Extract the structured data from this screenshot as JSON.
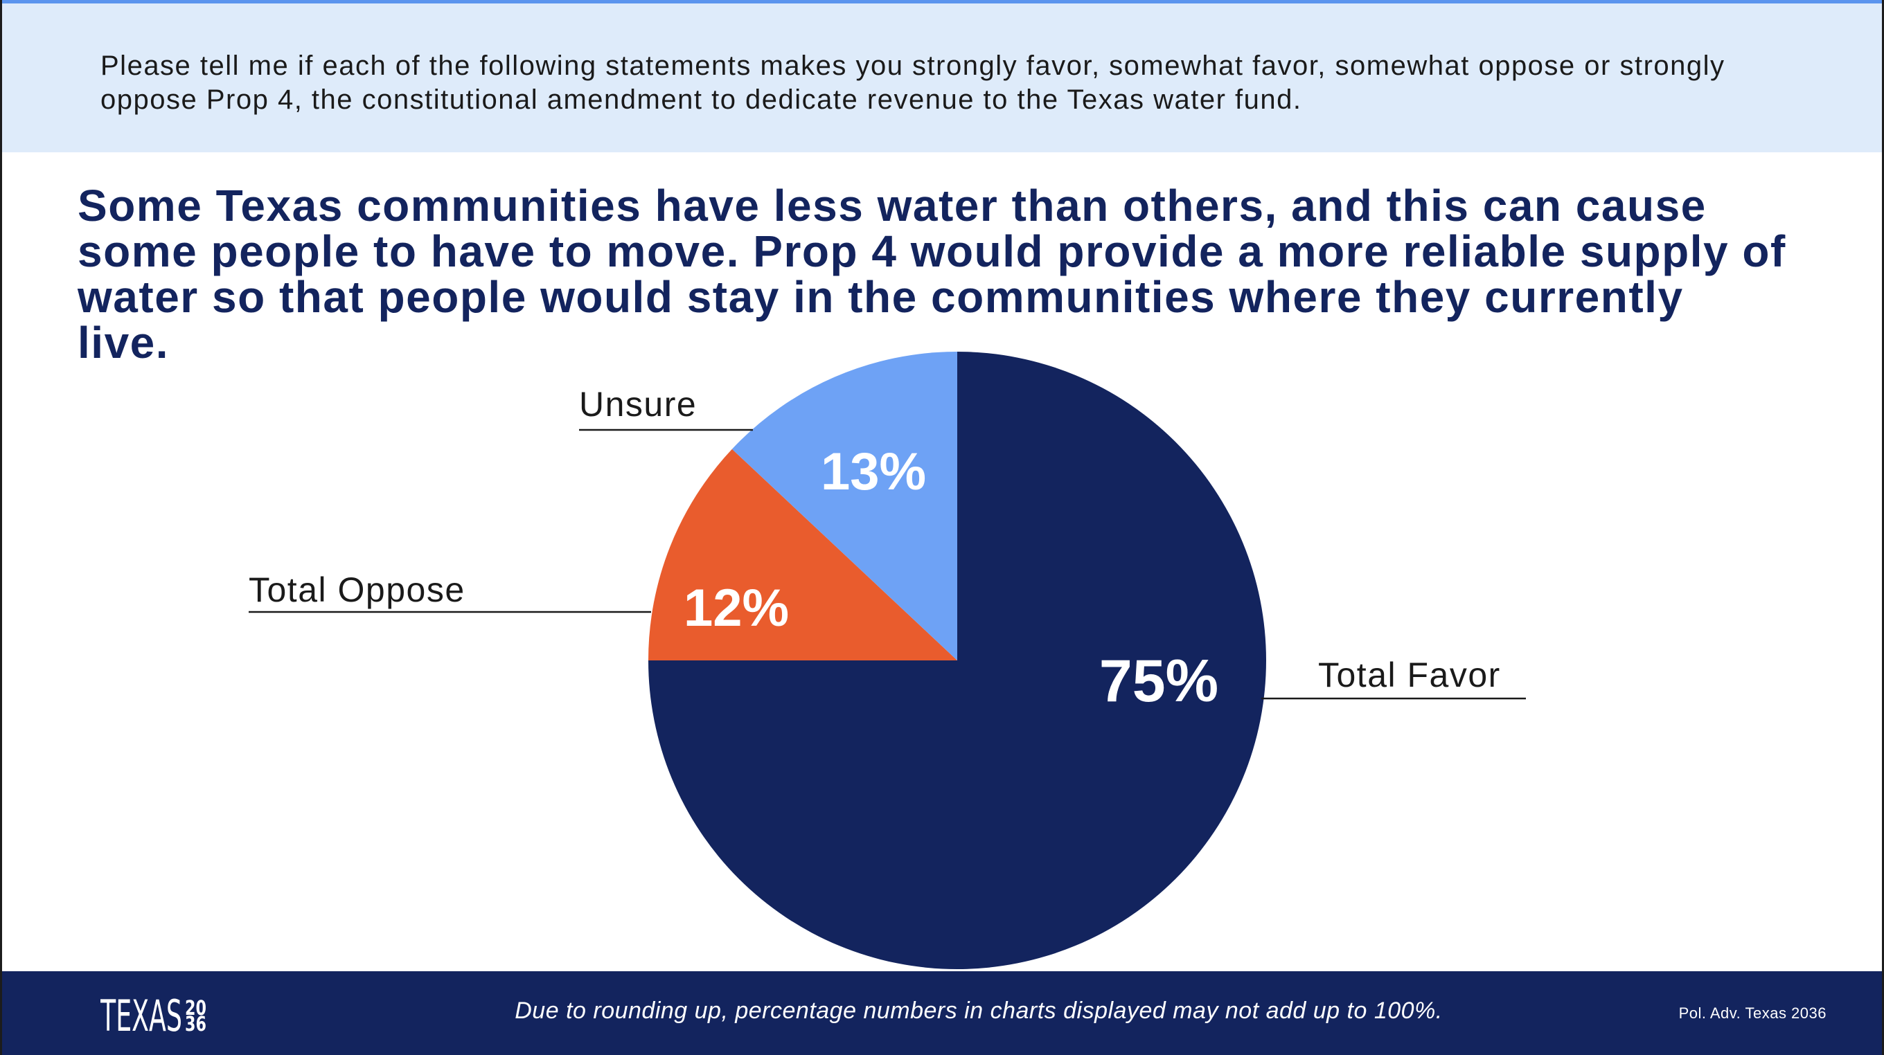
{
  "colors": {
    "header_background": "#deebfa",
    "header_rule": "#5b94ee",
    "navy": "#13245e"
  },
  "question": {
    "lines": [
      "Please tell me if each of the following statements makes you strongly favor, somewhat favor, somewhat oppose or strongly",
      "oppose Prop 4, the constitutional amendment to dedicate revenue to the Texas water fund."
    ]
  },
  "headline": {
    "lines": [
      "Some Texas communities have less water than others, and this can cause",
      "some people to have to move. Prop 4 would provide a more reliable supply of",
      "water so that people would stay in the communities where they currently",
      "live."
    ]
  },
  "chart_data": {
    "type": "pie",
    "slices": [
      {
        "label": "Total Favor",
        "value": 75,
        "display": "75%",
        "color": "#13245e"
      },
      {
        "label": "Total Oppose",
        "value": 12,
        "display": "12%",
        "color": "#e95c2d"
      },
      {
        "label": "Unsure",
        "value": 13,
        "display": "13%",
        "color": "#6ea2f5"
      }
    ]
  },
  "footer": {
    "logo": {
      "word": "TEXAS",
      "year_top": "20",
      "year_bottom": "36"
    },
    "note": "Due to rounding up, percentage numbers in charts displayed may not add up to 100%.",
    "credit": "Pol. Adv. Texas 2036"
  }
}
